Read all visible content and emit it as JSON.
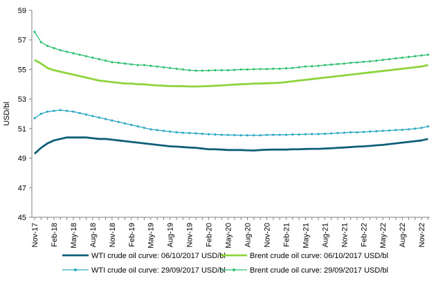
{
  "chart_data": {
    "type": "line",
    "title": "",
    "xlabel": "",
    "ylabel": "USD/bl",
    "ylim": [
      45,
      59
    ],
    "yticks": [
      45,
      47,
      49,
      51,
      53,
      55,
      57,
      59
    ],
    "grid": false,
    "legend_position": "bottom",
    "x_tick_labels": [
      "Nov-17",
      "Feb-18",
      "May-18",
      "Aug-18",
      "Nov-18",
      "Feb-19",
      "May-19",
      "Aug-19",
      "Nov-19",
      "Feb-20",
      "May-20",
      "Aug-20",
      "Nov-20",
      "Feb-21",
      "May-21",
      "Aug-21",
      "Nov-21",
      "Feb-22",
      "May-22",
      "Aug-22",
      "Nov-22"
    ],
    "x_months": [
      "Nov-17",
      "Dec-17",
      "Jan-18",
      "Feb-18",
      "Mar-18",
      "Apr-18",
      "May-18",
      "Jun-18",
      "Jul-18",
      "Aug-18",
      "Sep-18",
      "Oct-18",
      "Nov-18",
      "Dec-18",
      "Jan-19",
      "Feb-19",
      "Mar-19",
      "Apr-19",
      "May-19",
      "Jun-19",
      "Jul-19",
      "Aug-19",
      "Sep-19",
      "Oct-19",
      "Nov-19",
      "Dec-19",
      "Jan-20",
      "Feb-20",
      "Mar-20",
      "Apr-20",
      "May-20",
      "Jun-20",
      "Jul-20",
      "Aug-20",
      "Sep-20",
      "Oct-20",
      "Nov-20",
      "Dec-20",
      "Jan-21",
      "Feb-21",
      "Mar-21",
      "Apr-21",
      "May-21",
      "Jun-21",
      "Jul-21",
      "Aug-21",
      "Sep-21",
      "Oct-21",
      "Nov-21",
      "Dec-21",
      "Jan-22",
      "Feb-22",
      "Mar-22",
      "Apr-22",
      "May-22",
      "Jun-22",
      "Jul-22",
      "Aug-22",
      "Sep-22",
      "Oct-22",
      "Nov-22",
      "Dec-22"
    ],
    "series": [
      {
        "name": "WTI crude oil curve: 06/10/2017 USD/bl",
        "color": "#0d5f78",
        "markers": false,
        "values": [
          49.3,
          49.7,
          50.0,
          50.2,
          50.3,
          50.4,
          50.4,
          50.4,
          50.4,
          50.35,
          50.3,
          50.3,
          50.25,
          50.2,
          50.15,
          50.1,
          50.05,
          50.0,
          49.95,
          49.9,
          49.85,
          49.8,
          49.78,
          49.75,
          49.72,
          49.7,
          49.65,
          49.6,
          49.6,
          49.58,
          49.55,
          49.55,
          49.55,
          49.53,
          49.52,
          49.55,
          49.57,
          49.58,
          49.58,
          49.58,
          49.6,
          49.6,
          49.62,
          49.63,
          49.63,
          49.65,
          49.67,
          49.7,
          49.72,
          49.75,
          49.78,
          49.8,
          49.83,
          49.87,
          49.9,
          49.95,
          50.0,
          50.05,
          50.1,
          50.15,
          50.2,
          50.3
        ]
      },
      {
        "name": "Brent crude oil curve: 06/10/2017 USD/bl",
        "color": "#8cd43a",
        "markers": false,
        "values": [
          55.65,
          55.4,
          55.1,
          54.95,
          54.85,
          54.75,
          54.65,
          54.55,
          54.45,
          54.35,
          54.25,
          54.2,
          54.15,
          54.1,
          54.05,
          54.05,
          54.0,
          54.0,
          53.95,
          53.92,
          53.9,
          53.88,
          53.87,
          53.87,
          53.85,
          53.85,
          53.86,
          53.88,
          53.9,
          53.92,
          53.95,
          53.98,
          54.0,
          54.02,
          54.05,
          54.05,
          54.07,
          54.08,
          54.1,
          54.15,
          54.2,
          54.25,
          54.3,
          54.35,
          54.4,
          54.45,
          54.5,
          54.55,
          54.6,
          54.65,
          54.7,
          54.75,
          54.8,
          54.85,
          54.9,
          54.95,
          55.0,
          55.05,
          55.1,
          55.15,
          55.2,
          55.3
        ]
      },
      {
        "name": "WTI crude oil curve: 29/09/2017 USD/bl",
        "color": "#2aa8c4",
        "markers": true,
        "values": [
          51.7,
          52.0,
          52.15,
          52.2,
          52.25,
          52.2,
          52.15,
          52.05,
          51.95,
          51.85,
          51.75,
          51.65,
          51.55,
          51.45,
          51.35,
          51.25,
          51.15,
          51.05,
          50.95,
          50.9,
          50.85,
          50.8,
          50.75,
          50.72,
          50.7,
          50.68,
          50.65,
          50.62,
          50.6,
          50.58,
          50.57,
          50.56,
          50.55,
          50.55,
          50.55,
          50.55,
          50.57,
          50.58,
          50.58,
          50.58,
          50.6,
          50.6,
          50.62,
          50.63,
          50.63,
          50.65,
          50.67,
          50.7,
          50.72,
          50.75,
          50.75,
          50.77,
          50.8,
          50.82,
          50.85,
          50.87,
          50.9,
          50.92,
          50.95,
          51.0,
          51.05,
          51.15
        ]
      },
      {
        "name": "Brent crude oil curve: 29/09/2017 USD/bl",
        "color": "#2ec06e",
        "markers": true,
        "values": [
          57.55,
          56.85,
          56.6,
          56.45,
          56.3,
          56.2,
          56.1,
          56.0,
          55.9,
          55.8,
          55.7,
          55.6,
          55.5,
          55.45,
          55.4,
          55.35,
          55.3,
          55.3,
          55.25,
          55.2,
          55.15,
          55.1,
          55.05,
          55.0,
          54.95,
          54.92,
          54.92,
          54.93,
          54.95,
          54.95,
          54.95,
          54.97,
          55.0,
          55.0,
          55.02,
          55.03,
          55.03,
          55.05,
          55.05,
          55.08,
          55.1,
          55.15,
          55.2,
          55.22,
          55.25,
          55.3,
          55.33,
          55.37,
          55.4,
          55.45,
          55.48,
          55.52,
          55.55,
          55.6,
          55.65,
          55.7,
          55.75,
          55.8,
          55.85,
          55.9,
          55.95,
          56.0
        ]
      }
    ]
  }
}
